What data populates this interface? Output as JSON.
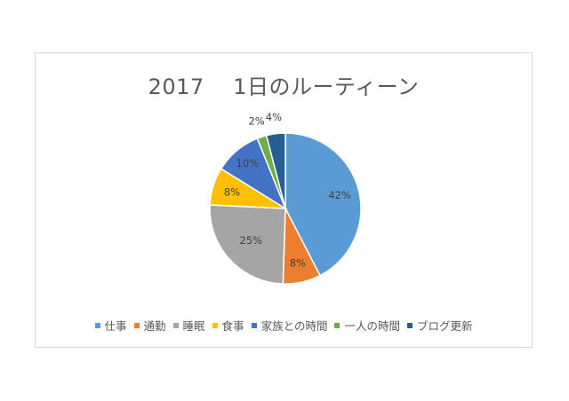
{
  "chart_data": {
    "type": "pie",
    "title": "2017　 1日のルーティーン",
    "categories": [
      "仕事",
      "通勤",
      "睡眠",
      "食事",
      "家族との時間",
      "一人の時間",
      "ブログ更新"
    ],
    "values": [
      42,
      8,
      25,
      8,
      10,
      2,
      4
    ],
    "data_labels": [
      "42%",
      "8%",
      "25%",
      "8%",
      "10%",
      "2%",
      "4%"
    ],
    "colors": [
      "#5b9bd5",
      "#ed7d31",
      "#a5a5a5",
      "#ffc000",
      "#4472c4",
      "#70ad47",
      "#255e91"
    ],
    "legend_position": "bottom"
  }
}
